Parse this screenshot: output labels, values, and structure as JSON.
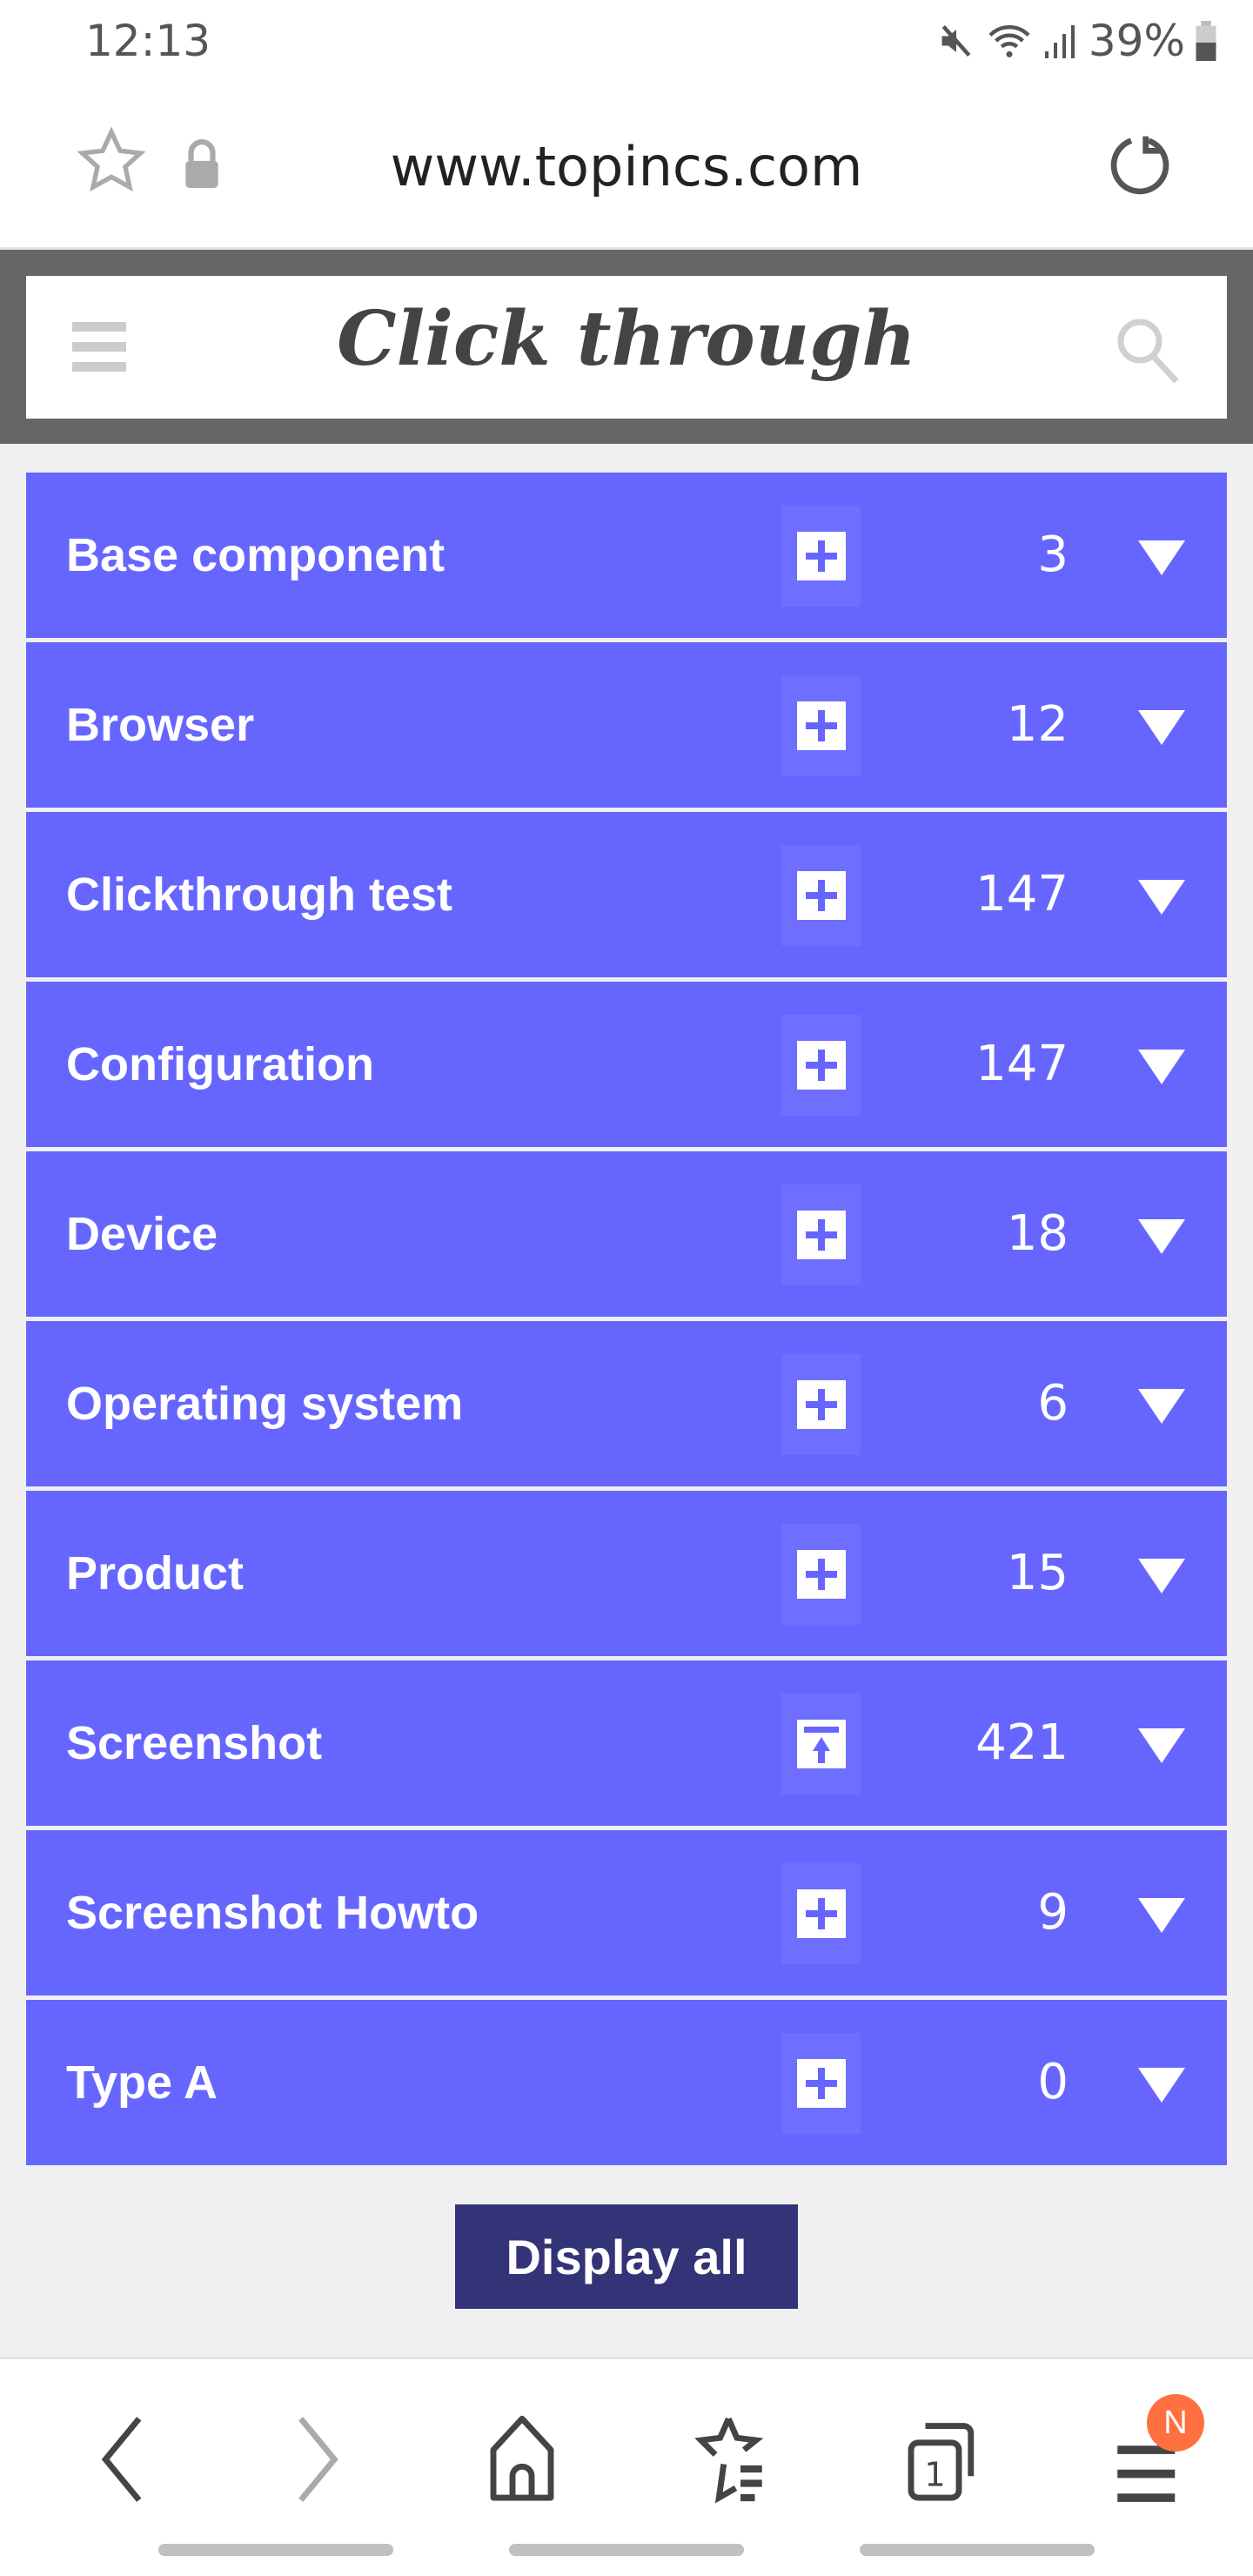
{
  "status_bar": {
    "time": "12:13",
    "battery": "39%"
  },
  "browser": {
    "url": "www.topincs.com"
  },
  "header": {
    "title": "Click through"
  },
  "items": [
    {
      "label": "Base component",
      "count": "3",
      "action": "plus"
    },
    {
      "label": "Browser",
      "count": "12",
      "action": "plus"
    },
    {
      "label": "Clickthrough test",
      "count": "147",
      "action": "plus"
    },
    {
      "label": "Configuration",
      "count": "147",
      "action": "plus"
    },
    {
      "label": "Device",
      "count": "18",
      "action": "plus"
    },
    {
      "label": "Operating system",
      "count": "6",
      "action": "plus"
    },
    {
      "label": "Product",
      "count": "15",
      "action": "plus"
    },
    {
      "label": "Screenshot",
      "count": "421",
      "action": "upload"
    },
    {
      "label": "Screenshot Howto",
      "count": "9",
      "action": "plus"
    },
    {
      "label": "Type A",
      "count": "0",
      "action": "plus"
    }
  ],
  "display_all_label": "Display all",
  "bottom_nav": {
    "menu_badge": "N"
  },
  "colors": {
    "row": "#6666ff",
    "button": "#333377",
    "header": "#666666",
    "badge": "#ff7040"
  }
}
